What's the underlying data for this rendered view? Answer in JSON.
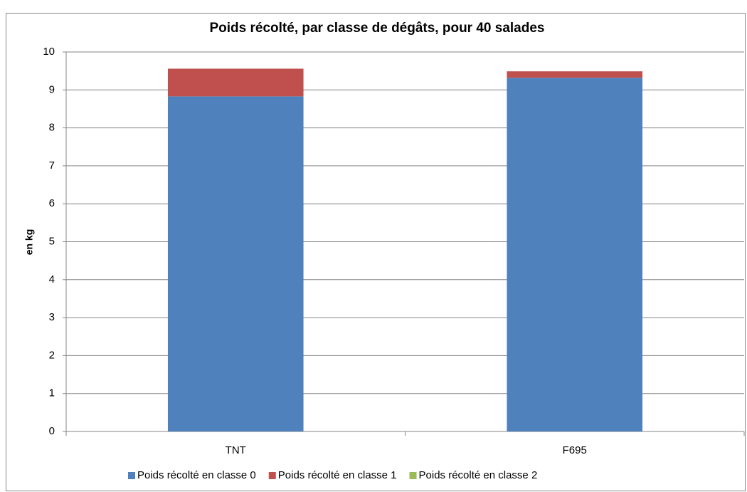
{
  "chart_data": {
    "type": "stacked-bar",
    "title": "Poids récolté, par classe de dégâts, pour 40 salades",
    "y_label": "en kg",
    "categories": [
      "TNT",
      "F695"
    ],
    "series": [
      {
        "name": "Poids récolté en classe 0",
        "color": "#4f81bd",
        "values": [
          8.83,
          9.32
        ]
      },
      {
        "name": "Poids récolté en classe 1",
        "color": "#c0504d",
        "values": [
          0.73,
          0.17
        ]
      },
      {
        "name": "Poids récolté en classe 2",
        "color": "#9bbb59",
        "values": [
          0,
          0
        ]
      }
    ],
    "ylim": [
      0,
      10
    ],
    "yticks": [
      0,
      1,
      2,
      3,
      4,
      5,
      6,
      7,
      8,
      9,
      10
    ],
    "grid": true,
    "legend": "bottom"
  }
}
